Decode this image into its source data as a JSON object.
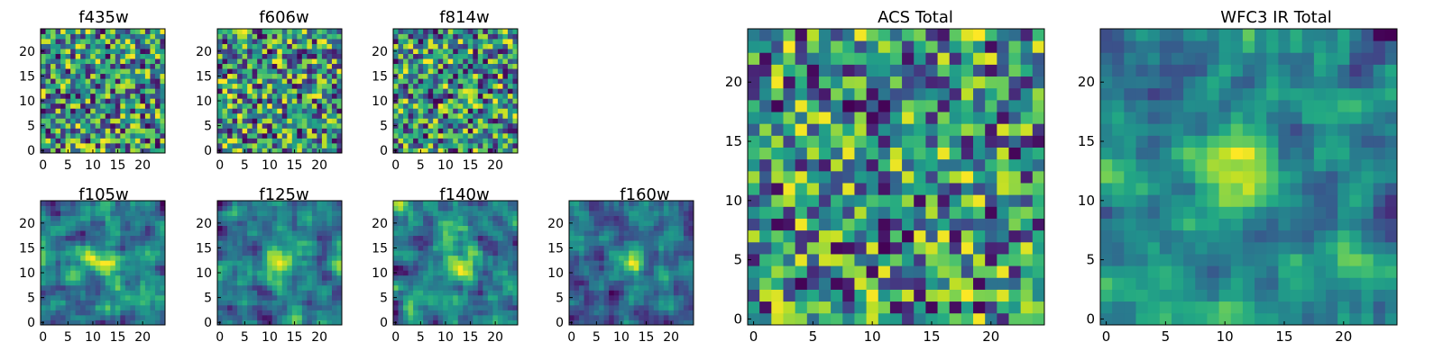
{
  "figure": {
    "title": "",
    "colormap": "viridis",
    "colormap_stops": [
      "#440154",
      "#482475",
      "#414487",
      "#355f8d",
      "#2a788e",
      "#21918c",
      "#22a884",
      "#44bf70",
      "#7ad151",
      "#bddf26",
      "#fde725"
    ]
  },
  "chart_data": [
    {
      "type": "heatmap",
      "id": "f435w",
      "title": "f435w",
      "x": [
        0,
        24
      ],
      "y": [
        0,
        24
      ],
      "xlim": [
        -0.5,
        24.5
      ],
      "ylim": [
        -0.5,
        24.5
      ],
      "xticks": [
        0,
        5,
        10,
        15,
        20
      ],
      "yticks": [
        0,
        5,
        10,
        15,
        20
      ],
      "grid": false,
      "pattern": "noise",
      "seed": 11
    },
    {
      "type": "heatmap",
      "id": "f606w",
      "title": "f606w",
      "x": [
        0,
        24
      ],
      "y": [
        0,
        24
      ],
      "xlim": [
        -0.5,
        24.5
      ],
      "ylim": [
        -0.5,
        24.5
      ],
      "xticks": [
        0,
        5,
        10,
        15,
        20
      ],
      "yticks": [
        0,
        5,
        10,
        15,
        20
      ],
      "grid": false,
      "pattern": "noise",
      "seed": 23
    },
    {
      "type": "heatmap",
      "id": "f814w",
      "title": "f814w",
      "x": [
        0,
        24
      ],
      "y": [
        0,
        24
      ],
      "xlim": [
        -0.5,
        24.5
      ],
      "ylim": [
        -0.5,
        24.5
      ],
      "xticks": [
        0,
        5,
        10,
        15,
        20
      ],
      "yticks": [
        0,
        5,
        10,
        15,
        20
      ],
      "grid": false,
      "pattern": "noise",
      "seed": 37
    },
    {
      "type": "heatmap",
      "id": "f105w",
      "title": "f105w",
      "x": [
        0,
        24
      ],
      "y": [
        0,
        24
      ],
      "xlim": [
        -0.5,
        24.5
      ],
      "ylim": [
        -0.5,
        24.5
      ],
      "xticks": [
        0,
        5,
        10,
        15,
        20
      ],
      "yticks": [
        0,
        5,
        10,
        15,
        20
      ],
      "grid": false,
      "pattern": "smooth",
      "seed": 41
    },
    {
      "type": "heatmap",
      "id": "f125w",
      "title": "f125w",
      "x": [
        0,
        24
      ],
      "y": [
        0,
        24
      ],
      "xlim": [
        -0.5,
        24.5
      ],
      "ylim": [
        -0.5,
        24.5
      ],
      "xticks": [
        0,
        5,
        10,
        15,
        20
      ],
      "yticks": [
        0,
        5,
        10,
        15,
        20
      ],
      "grid": false,
      "pattern": "smooth",
      "seed": 53
    },
    {
      "type": "heatmap",
      "id": "f140w",
      "title": "f140w",
      "x": [
        0,
        24
      ],
      "y": [
        0,
        24
      ],
      "xlim": [
        -0.5,
        24.5
      ],
      "ylim": [
        -0.5,
        24.5
      ],
      "xticks": [
        0,
        5,
        10,
        15,
        20
      ],
      "yticks": [
        0,
        5,
        10,
        15,
        20
      ],
      "grid": false,
      "pattern": "smooth",
      "seed": 67
    },
    {
      "type": "heatmap",
      "id": "f160w",
      "title": "f160w",
      "x": [
        0,
        24
      ],
      "y": [
        0,
        24
      ],
      "xlim": [
        -0.5,
        24.5
      ],
      "ylim": [
        -0.5,
        24.5
      ],
      "xticks": [
        0,
        5,
        10,
        15,
        20
      ],
      "yticks": [
        0,
        5,
        10,
        15,
        20
      ],
      "grid": false,
      "pattern": "smooth",
      "seed": 79
    },
    {
      "type": "heatmap",
      "id": "acs-total",
      "title": "ACS Total",
      "x": [
        0,
        24
      ],
      "y": [
        0,
        24
      ],
      "xlim": [
        -0.5,
        24.5
      ],
      "ylim": [
        -0.5,
        24.5
      ],
      "xticks": [
        0,
        5,
        10,
        15,
        20
      ],
      "yticks": [
        0,
        5,
        10,
        15,
        20
      ],
      "grid": false,
      "pattern": "noise",
      "seed": 97
    },
    {
      "type": "heatmap",
      "id": "wfc3-ir-total",
      "title": "WFC3 IR Total",
      "x": [
        0,
        24
      ],
      "y": [
        0,
        24
      ],
      "xlim": [
        -0.5,
        24.5
      ],
      "ylim": [
        -0.5,
        24.5
      ],
      "xticks": [
        0,
        5,
        10,
        15,
        20
      ],
      "yticks": [
        0,
        5,
        10,
        15,
        20
      ],
      "grid": false,
      "pattern": "smooth",
      "seed": 101
    }
  ]
}
